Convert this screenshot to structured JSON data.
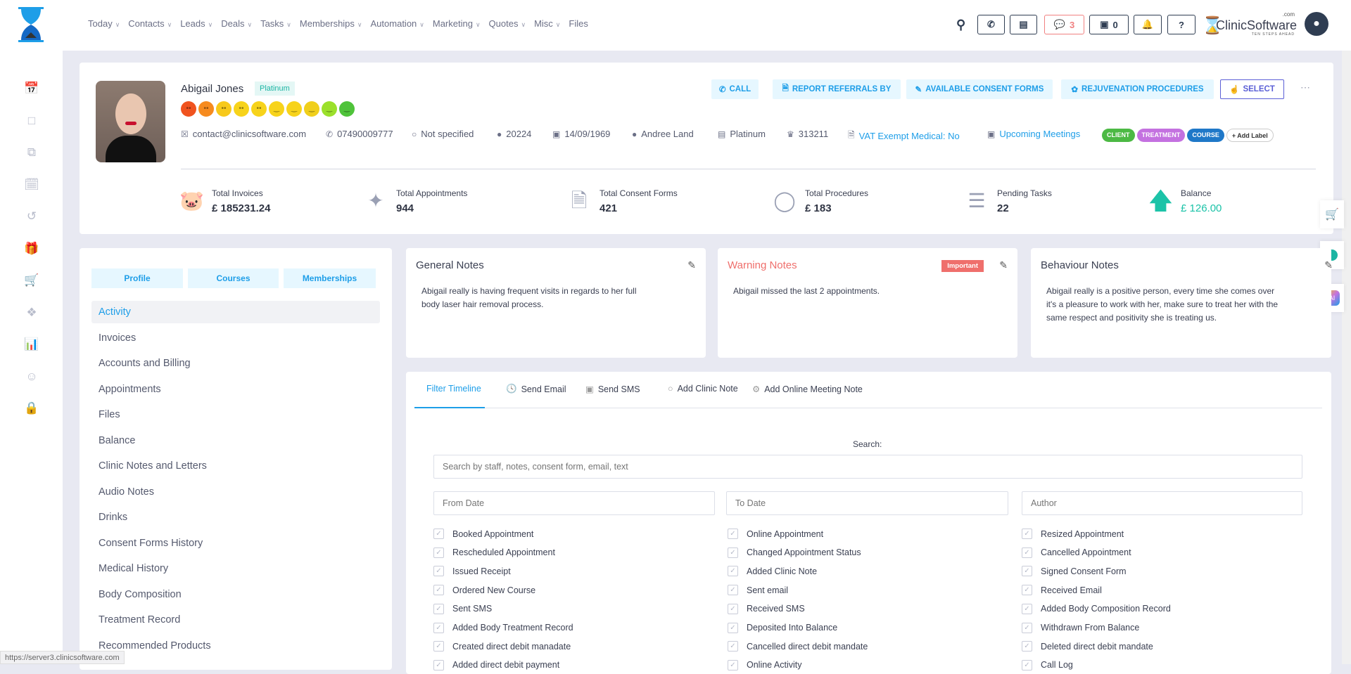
{
  "nav": {
    "items": [
      "Today",
      "Contacts",
      "Leads",
      "Deals",
      "Tasks",
      "Memberships",
      "Automation",
      "Marketing",
      "Quotes",
      "Misc",
      "Files"
    ],
    "has_chevron": [
      true,
      true,
      true,
      true,
      true,
      true,
      true,
      true,
      true,
      true,
      false
    ]
  },
  "topbar": {
    "messages_count": "3",
    "store_count": "0",
    "brand": "ClinicSoftware",
    "brand_suffix": ".com",
    "brand_tagline": "TEN STEPS AHEAD"
  },
  "rail_icons": [
    "calendar-icon",
    "cube-icon",
    "copy-icon",
    "calendar-refresh-icon",
    "history-icon",
    "gift-icon",
    "cart-icon",
    "tag-icon",
    "report-icon",
    "user-circle-icon",
    "lock-icon"
  ],
  "client": {
    "name": "Abigail Jones",
    "tier": "Platinum",
    "email": "contact@clinicsoftware.com",
    "phone": "07490009777",
    "gender": "Not specified",
    "id": "20224",
    "dob": "14/09/1969",
    "staff": "Andree Land",
    "membership": "Platinum",
    "points": "313211",
    "vat": "VAT Exempt Medical: No",
    "meetings": "Upcoming Meetings",
    "labels": [
      {
        "text": "CLIENT",
        "color": "#4cb944"
      },
      {
        "text": "TREATMENT",
        "color": "#c471e0"
      },
      {
        "text": "COURSE",
        "color": "#1f78c8"
      }
    ],
    "add_label": "+ Add Label",
    "mood_colors": [
      "#f0531f",
      "#f68b1f",
      "#f7c91b",
      "#f7d31b",
      "#f7d31b",
      "#f7d31b",
      "#f7d31b",
      "#f0cf1b",
      "#9be02b",
      "#4fc33a"
    ]
  },
  "actions": {
    "call": "CALL",
    "referrals": "REPORT REFERRALS BY",
    "consent": "AVAILABLE CONSENT FORMS",
    "rejuvenation": "REJUVENATION PROCEDURES",
    "select": "SELECT"
  },
  "stats": [
    {
      "label": "Total Invoices",
      "value": "£ 185231.24"
    },
    {
      "label": "Total Appointments",
      "value": "944"
    },
    {
      "label": "Total Consent Forms",
      "value": "421"
    },
    {
      "label": "Total Procedures",
      "value": "£ 183"
    },
    {
      "label": "Pending Tasks",
      "value": "22"
    },
    {
      "label": "Balance",
      "value": "£ 126.00"
    }
  ],
  "left_tabs": [
    "Profile",
    "Courses",
    "Memberships"
  ],
  "left_menu": [
    "Activity",
    "Invoices",
    "Accounts and Billing",
    "Appointments",
    "Files",
    "Balance",
    "Clinic Notes and Letters",
    "Audio Notes",
    "Drinks",
    "Consent Forms History",
    "Medical History",
    "Body Composition",
    "Treatment Record",
    "Recommended Products"
  ],
  "notes": {
    "general": {
      "title": "General Notes",
      "body": "Abigail really is having frequent visits in regards to her full body laser hair removal process."
    },
    "warning": {
      "title": "Warning Notes",
      "badge": "Important",
      "body": "Abigail missed the last 2 appointments."
    },
    "behaviour": {
      "title": "Behaviour Notes",
      "body": "Abigail really is a positive person, every time she comes over it's a pleasure to work with her, make sure to treat her with the same respect and positivity she is treating us."
    }
  },
  "timeline": {
    "tabs": [
      "Filter Timeline",
      "Send Email",
      "Send SMS",
      "Add Clinic Note",
      "Add Online Meeting Note"
    ],
    "search_label": "Search:",
    "search_placeholder": "Search by staff, notes, consent form, email, text",
    "from_placeholder": "From Date",
    "to_placeholder": "To Date",
    "author_placeholder": "Author",
    "filters": [
      [
        "Booked Appointment",
        "Online Appointment",
        "Resized Appointment"
      ],
      [
        "Rescheduled Appointment",
        "Changed Appointment Status",
        "Cancelled Appointment"
      ],
      [
        "Issued Receipt",
        "Added Clinic Note",
        "Signed Consent Form"
      ],
      [
        "Ordered New Course",
        "Sent email",
        "Received Email"
      ],
      [
        "Sent SMS",
        "Received SMS",
        "Added Body Composition Record"
      ],
      [
        "Added Body Treatment Record",
        "Deposited Into Balance",
        "Withdrawn From Balance"
      ],
      [
        "Created direct debit manadate",
        "Cancelled direct debit mandate",
        "Deleted direct debit mandate"
      ],
      [
        "Added direct debit payment",
        "Online Activity",
        "Call Log"
      ]
    ]
  },
  "status_url": "https://server3.clinicsoftware.com"
}
